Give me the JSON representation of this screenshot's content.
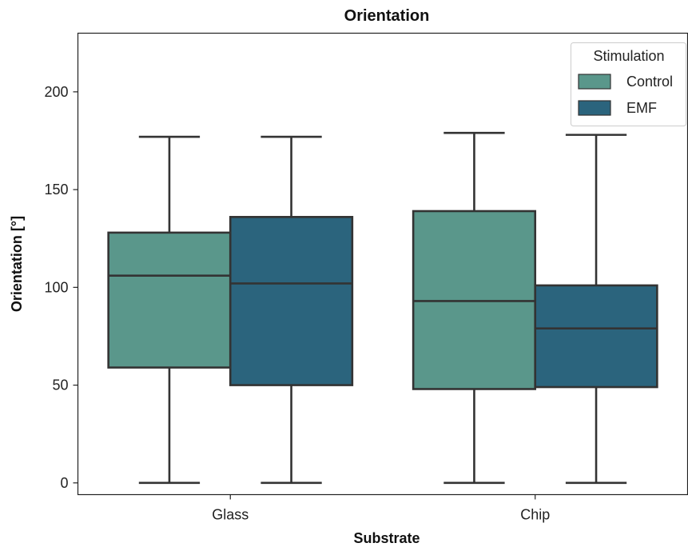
{
  "chart_data": {
    "type": "box",
    "title": "Orientation",
    "xlabel": "Substrate",
    "ylabel": "Orientation [°]",
    "categories": [
      "Glass",
      "Chip"
    ],
    "ylim": [
      -6,
      230
    ],
    "yticks": [
      0,
      50,
      100,
      150,
      200
    ],
    "grid": false,
    "legend": {
      "title": "Stimulation",
      "placement": "top-right"
    },
    "series": [
      {
        "name": "Control",
        "color": "#5a978b",
        "boxes": [
          {
            "whisker_low": 0,
            "q1": 59,
            "median": 106,
            "q3": 128,
            "whisker_high": 177
          },
          {
            "whisker_low": 0,
            "q1": 48,
            "median": 93,
            "q3": 139,
            "whisker_high": 179
          }
        ]
      },
      {
        "name": "EMF",
        "color": "#2b647d",
        "boxes": [
          {
            "whisker_low": 0,
            "q1": 50,
            "median": 102,
            "q3": 136,
            "whisker_high": 177
          },
          {
            "whisker_low": 0,
            "q1": 49,
            "median": 79,
            "q3": 101,
            "whisker_high": 178
          }
        ]
      }
    ]
  }
}
